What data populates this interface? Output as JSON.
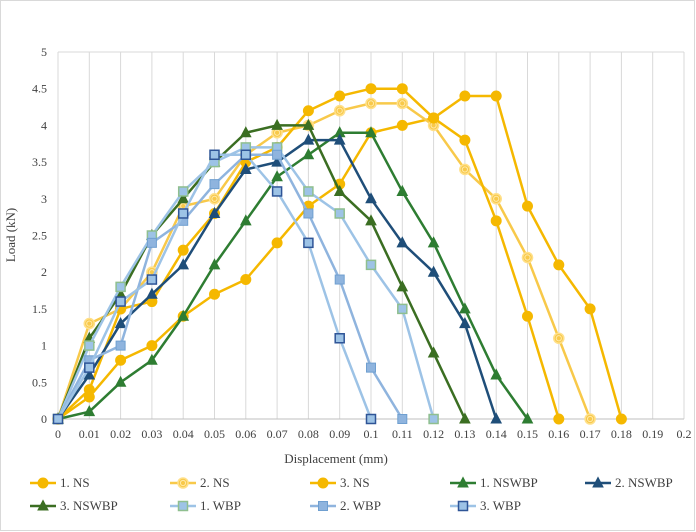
{
  "chart_data": {
    "type": "line",
    "title": "",
    "xlabel": "Displacement (mm)",
    "ylabel": "Load (kN)",
    "xlim": [
      0,
      0.2
    ],
    "ylim": [
      0,
      5
    ],
    "x_ticks": [
      "0",
      "0.01",
      "0.02",
      "0.03",
      "0.04",
      "0.05",
      "0.06",
      "0.07",
      "0.08",
      "0.09",
      "0.1",
      "0.11",
      "0.12",
      "0.13",
      "0.14",
      "0.15",
      "0.16",
      "0.17",
      "0.18",
      "0.19",
      "0.2"
    ],
    "y_ticks": [
      "0",
      "0.5",
      "1",
      "1.5",
      "2",
      "2.5",
      "3",
      "3.5",
      "4",
      "4.5",
      "5"
    ],
    "grid": "vertical",
    "legend_position": "bottom",
    "series": [
      {
        "name": "1. NS",
        "color": "#F5B800",
        "marker": "circle",
        "x": [
          0,
          0.01,
          0.02,
          0.03,
          0.04,
          0.05,
          0.06,
          0.07,
          0.08,
          0.09,
          0.1,
          0.11,
          0.12,
          0.13,
          0.14,
          0.15,
          0.16,
          0.17,
          0.18
        ],
        "y": [
          0,
          0.3,
          0.8,
          1.0,
          1.4,
          1.7,
          1.9,
          2.4,
          2.9,
          3.2,
          3.9,
          4.0,
          4.1,
          4.4,
          4.4,
          2.9,
          2.1,
          1.5,
          0
        ]
      },
      {
        "name": "2. NS",
        "color": "#F8C94A",
        "marker": "circle-double",
        "x": [
          0,
          0.01,
          0.02,
          0.03,
          0.04,
          0.05,
          0.06,
          0.07,
          0.08,
          0.09,
          0.1,
          0.11,
          0.12,
          0.13,
          0.14,
          0.15,
          0.16,
          0.17
        ],
        "y": [
          0,
          1.3,
          1.5,
          2.0,
          2.9,
          3.0,
          3.6,
          3.9,
          4.0,
          4.2,
          4.3,
          4.3,
          4.0,
          3.4,
          3.0,
          2.2,
          1.1,
          0
        ]
      },
      {
        "name": "3. NS",
        "color": "#F5B800",
        "marker": "circle",
        "x": [
          0,
          0.01,
          0.02,
          0.03,
          0.04,
          0.05,
          0.06,
          0.07,
          0.08,
          0.09,
          0.1,
          0.11,
          0.12,
          0.13,
          0.14,
          0.15,
          0.16
        ],
        "y": [
          0,
          0.4,
          1.5,
          1.6,
          2.3,
          2.8,
          3.5,
          3.7,
          4.2,
          4.4,
          4.5,
          4.5,
          4.1,
          3.8,
          2.7,
          1.4,
          0
        ]
      },
      {
        "name": "1. NSWBP",
        "color": "#2E7D32",
        "marker": "triangle",
        "x": [
          0,
          0.01,
          0.02,
          0.03,
          0.04,
          0.05,
          0.06,
          0.07,
          0.08,
          0.09,
          0.1,
          0.11,
          0.12,
          0.13,
          0.14,
          0.15
        ],
        "y": [
          0,
          0.1,
          0.5,
          0.8,
          1.4,
          2.1,
          2.7,
          3.3,
          3.6,
          3.9,
          3.9,
          3.1,
          2.4,
          1.5,
          0.6,
          0
        ]
      },
      {
        "name": "2. NSWBP",
        "color": "#1F4E79",
        "marker": "triangle",
        "x": [
          0,
          0.01,
          0.02,
          0.03,
          0.04,
          0.05,
          0.06,
          0.07,
          0.08,
          0.09,
          0.1,
          0.11,
          0.12,
          0.13,
          0.14
        ],
        "y": [
          0,
          0.6,
          1.3,
          1.7,
          2.1,
          2.8,
          3.4,
          3.5,
          3.8,
          3.8,
          3.0,
          2.4,
          2.0,
          1.3,
          0
        ]
      },
      {
        "name": "3. NSWBP",
        "color": "#3B6E22",
        "marker": "triangle",
        "x": [
          0,
          0.01,
          0.02,
          0.03,
          0.04,
          0.05,
          0.06,
          0.07,
          0.08,
          0.09,
          0.1,
          0.11,
          0.12,
          0.13
        ],
        "y": [
          0,
          1.1,
          1.7,
          2.5,
          3.0,
          3.5,
          3.9,
          4.0,
          4.0,
          3.1,
          2.7,
          1.8,
          0.9,
          0
        ]
      },
      {
        "name": "1. WBP",
        "color": "#9DC3E6",
        "marker": "square-double",
        "x": [
          0,
          0.01,
          0.02,
          0.03,
          0.04,
          0.05,
          0.06,
          0.07,
          0.08,
          0.09,
          0.1,
          0.11,
          0.12
        ],
        "y": [
          0,
          1.0,
          1.8,
          2.5,
          3.1,
          3.5,
          3.7,
          3.7,
          3.1,
          2.8,
          2.1,
          1.5,
          0
        ]
      },
      {
        "name": "2. WBP",
        "color": "#8FB4DE",
        "marker": "square",
        "x": [
          0,
          0.01,
          0.02,
          0.03,
          0.04,
          0.05,
          0.06,
          0.07,
          0.08,
          0.09,
          0.1,
          0.11
        ],
        "y": [
          0,
          0.8,
          1.0,
          2.4,
          2.7,
          3.2,
          3.6,
          3.6,
          2.8,
          1.9,
          0.7,
          0
        ]
      },
      {
        "name": "3. WBP",
        "color": "#9DC3E6",
        "marker": "square-blue",
        "x": [
          0,
          0.01,
          0.02,
          0.03,
          0.04,
          0.05,
          0.06,
          0.07,
          0.08,
          0.09,
          0.1
        ],
        "y": [
          0,
          0.7,
          1.6,
          1.9,
          2.8,
          3.6,
          3.6,
          3.1,
          2.4,
          1.1,
          0
        ]
      }
    ]
  }
}
